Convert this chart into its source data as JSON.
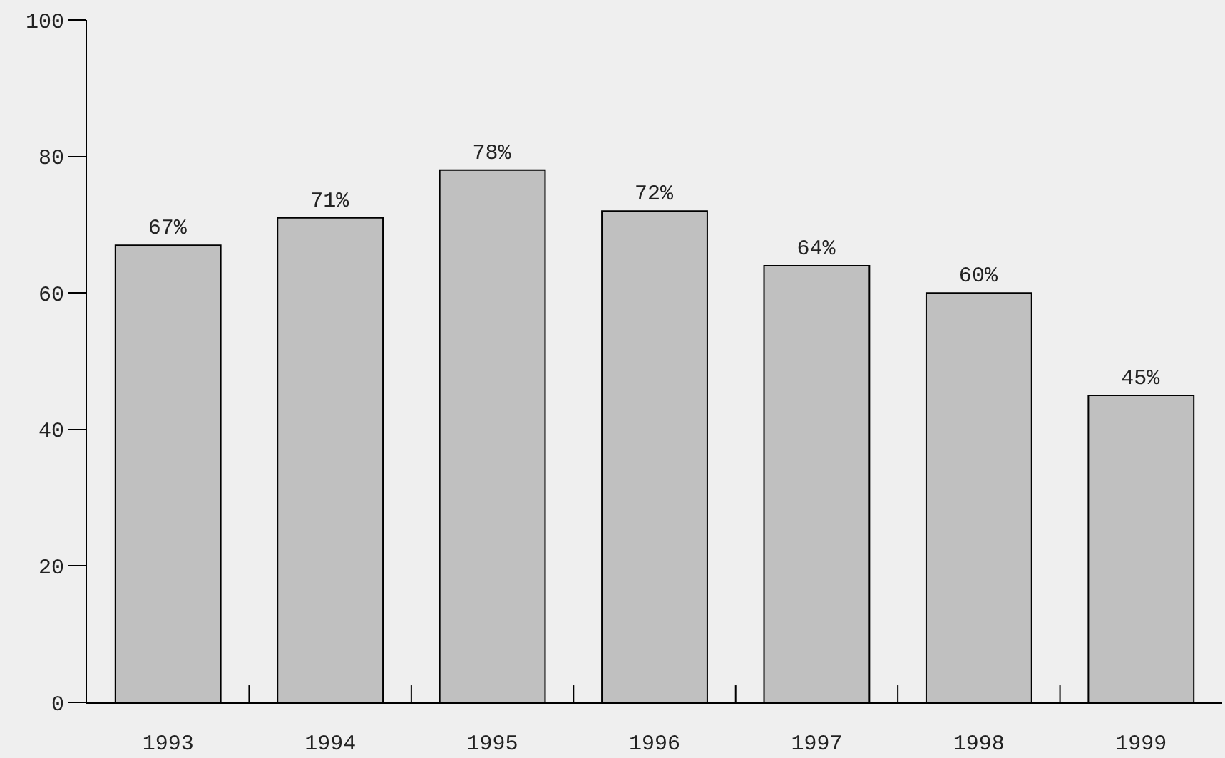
{
  "chart_data": {
    "type": "bar",
    "categories": [
      "1993",
      "1994",
      "1995",
      "1996",
      "1997",
      "1998",
      "1999"
    ],
    "values": [
      67,
      71,
      78,
      72,
      64,
      60,
      45
    ],
    "value_labels": [
      "67%",
      "71%",
      "78%",
      "72%",
      "64%",
      "60%",
      "45%"
    ],
    "color": "#c0c0c0",
    "ylim": [
      0,
      100
    ],
    "yticks": [
      0,
      20,
      40,
      60,
      80,
      100
    ],
    "grid": false
  }
}
